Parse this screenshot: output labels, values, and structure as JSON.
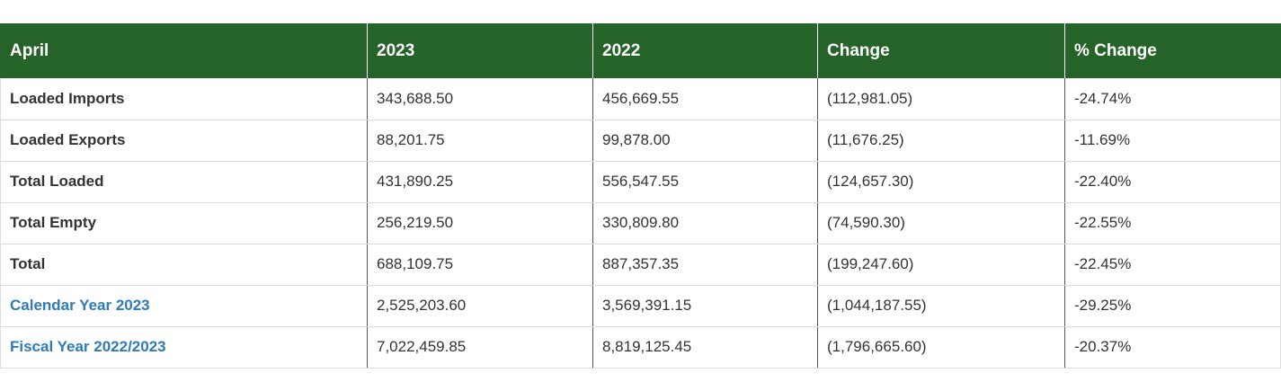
{
  "table": {
    "headers": [
      "April",
      "2023",
      "2022",
      "Change",
      "% Change"
    ],
    "rows": [
      {
        "label": "Loaded Imports",
        "y2023": "343,688.50",
        "y2022": "456,669.55",
        "change": "(112,981.05)",
        "pct": "-24.74%",
        "is_link": false
      },
      {
        "label": "Loaded Exports",
        "y2023": "88,201.75",
        "y2022": "99,878.00",
        "change": "(11,676.25)",
        "pct": "-11.69%",
        "is_link": false
      },
      {
        "label": "Total Loaded",
        "y2023": "431,890.25",
        "y2022": "556,547.55",
        "change": "(124,657.30)",
        "pct": "-22.40%",
        "is_link": false
      },
      {
        "label": "Total Empty",
        "y2023": "256,219.50",
        "y2022": "330,809.80",
        "change": "(74,590.30)",
        "pct": "-22.55%",
        "is_link": false
      },
      {
        "label": "Total",
        "y2023": "688,109.75",
        "y2022": "887,357.35",
        "change": "(199,247.60)",
        "pct": "-22.45%",
        "is_link": false
      },
      {
        "label": "Calendar Year 2023",
        "y2023": "2,525,203.60",
        "y2022": "3,569,391.15",
        "change": "(1,044,187.55)",
        "pct": "-29.25%",
        "is_link": true
      },
      {
        "label": "Fiscal Year 2022/2023",
        "y2023": "7,022,459.85",
        "y2022": "8,819,125.45",
        "change": "(1,796,665.60)",
        "pct": "-20.37%",
        "is_link": true
      }
    ]
  },
  "colors": {
    "header_bg": "#266328",
    "header_text": "#ffffff",
    "link": "#2f7ab8",
    "body_text": "#333333"
  }
}
